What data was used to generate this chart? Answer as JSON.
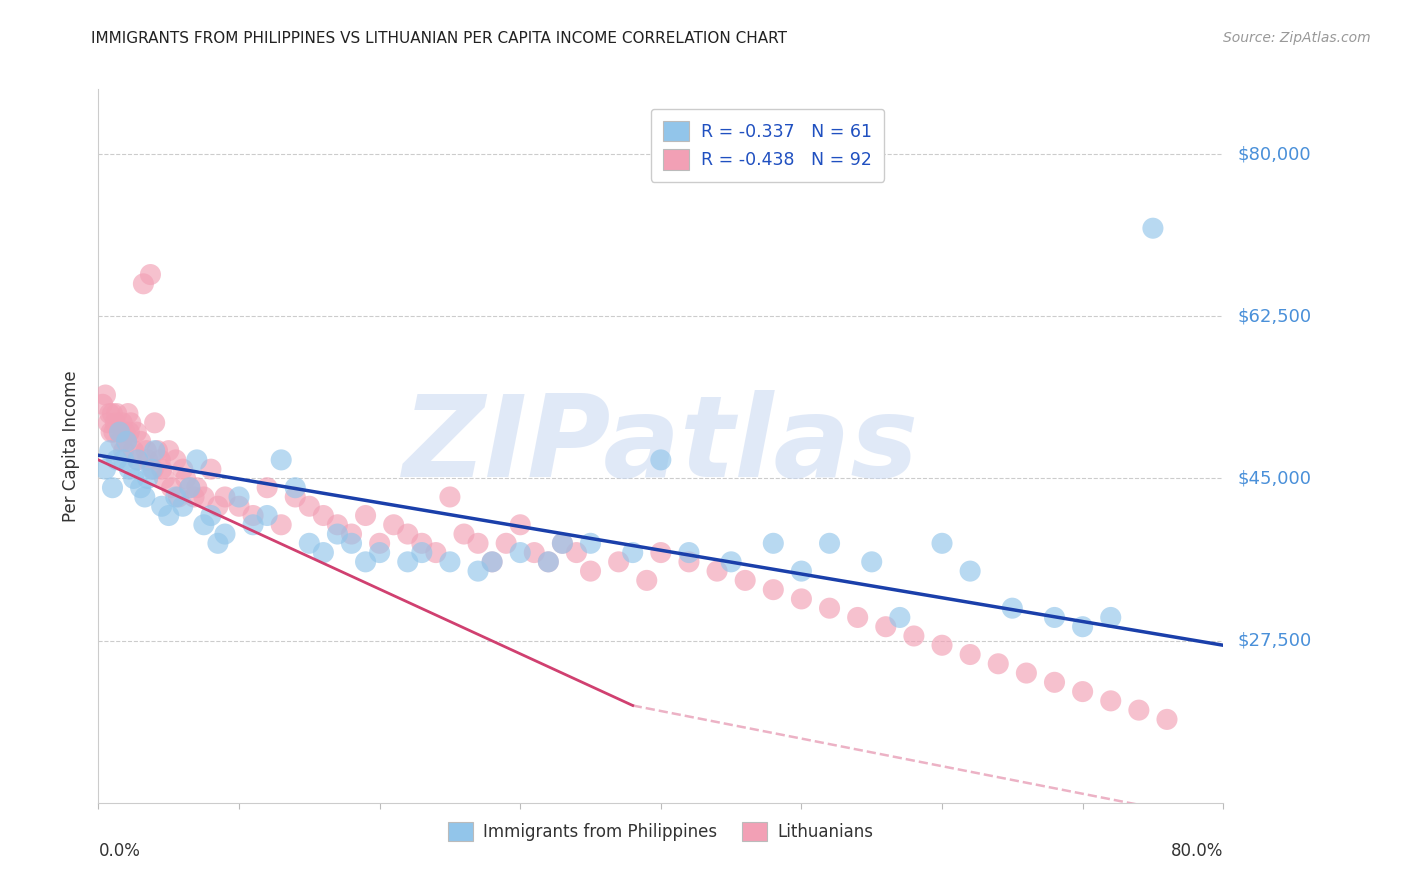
{
  "title": "IMMIGRANTS FROM PHILIPPINES VS LITHUANIAN PER CAPITA INCOME CORRELATION CHART",
  "source": "Source: ZipAtlas.com",
  "ylabel": "Per Capita Income",
  "ytick_labels": [
    "$80,000",
    "$62,500",
    "$45,000",
    "$27,500"
  ],
  "ytick_values": [
    80000,
    62500,
    45000,
    27500
  ],
  "xmin": 0.0,
  "xmax": 0.8,
  "ymin": 10000,
  "ymax": 87000,
  "legend_r1": "R = -0.337   N = 61",
  "legend_r2": "R = -0.438   N = 92",
  "blue_color": "#92C5EA",
  "pink_color": "#F2A0B5",
  "trend_blue": "#1A3FAA",
  "trend_pink": "#D04070",
  "watermark_text": "ZIPatlas",
  "watermark_color": "#C8D8F2",
  "blue_trend": [
    0.0,
    0.8,
    47500,
    27000
  ],
  "pink_trend_solid": [
    0.0,
    0.38,
    47000,
    20500
  ],
  "pink_trend_dash": [
    0.38,
    0.8,
    20500,
    8000
  ],
  "phil_x": [
    0.005,
    0.008,
    0.01,
    0.013,
    0.015,
    0.018,
    0.02,
    0.022,
    0.025,
    0.028,
    0.03,
    0.033,
    0.035,
    0.038,
    0.04,
    0.045,
    0.05,
    0.055,
    0.06,
    0.065,
    0.07,
    0.075,
    0.08,
    0.085,
    0.09,
    0.1,
    0.11,
    0.12,
    0.13,
    0.14,
    0.15,
    0.16,
    0.17,
    0.18,
    0.19,
    0.2,
    0.22,
    0.23,
    0.25,
    0.27,
    0.28,
    0.3,
    0.32,
    0.33,
    0.35,
    0.38,
    0.4,
    0.42,
    0.45,
    0.48,
    0.5,
    0.52,
    0.55,
    0.57,
    0.6,
    0.62,
    0.65,
    0.68,
    0.7,
    0.72,
    0.75
  ],
  "phil_y": [
    46000,
    48000,
    44000,
    47000,
    50000,
    47000,
    49000,
    46000,
    45000,
    47000,
    44000,
    43000,
    45000,
    46000,
    48000,
    42000,
    41000,
    43000,
    42000,
    44000,
    47000,
    40000,
    41000,
    38000,
    39000,
    43000,
    40000,
    41000,
    47000,
    44000,
    38000,
    37000,
    39000,
    38000,
    36000,
    37000,
    36000,
    37000,
    36000,
    35000,
    36000,
    37000,
    36000,
    38000,
    38000,
    37000,
    47000,
    37000,
    36000,
    38000,
    35000,
    38000,
    36000,
    30000,
    38000,
    35000,
    31000,
    30000,
    29000,
    30000,
    72000
  ],
  "lith_x": [
    0.003,
    0.005,
    0.007,
    0.008,
    0.009,
    0.01,
    0.011,
    0.012,
    0.013,
    0.015,
    0.016,
    0.017,
    0.018,
    0.019,
    0.02,
    0.021,
    0.022,
    0.023,
    0.025,
    0.027,
    0.028,
    0.03,
    0.032,
    0.034,
    0.035,
    0.037,
    0.039,
    0.04,
    0.042,
    0.044,
    0.045,
    0.047,
    0.05,
    0.052,
    0.055,
    0.057,
    0.06,
    0.062,
    0.065,
    0.068,
    0.07,
    0.075,
    0.08,
    0.085,
    0.09,
    0.1,
    0.11,
    0.12,
    0.13,
    0.14,
    0.15,
    0.16,
    0.17,
    0.18,
    0.19,
    0.2,
    0.21,
    0.22,
    0.23,
    0.24,
    0.25,
    0.26,
    0.27,
    0.28,
    0.29,
    0.3,
    0.31,
    0.32,
    0.33,
    0.34,
    0.35,
    0.37,
    0.39,
    0.4,
    0.42,
    0.44,
    0.46,
    0.48,
    0.5,
    0.52,
    0.54,
    0.56,
    0.58,
    0.6,
    0.62,
    0.64,
    0.66,
    0.68,
    0.7,
    0.72,
    0.74,
    0.76
  ],
  "lith_y": [
    53000,
    54000,
    51000,
    52000,
    50000,
    52000,
    50000,
    51000,
    52000,
    50000,
    49000,
    51000,
    48000,
    50000,
    49000,
    52000,
    50000,
    51000,
    48000,
    50000,
    47000,
    49000,
    66000,
    48000,
    47000,
    67000,
    46000,
    51000,
    48000,
    47000,
    46000,
    45000,
    48000,
    44000,
    47000,
    43000,
    46000,
    45000,
    44000,
    43000,
    44000,
    43000,
    46000,
    42000,
    43000,
    42000,
    41000,
    44000,
    40000,
    43000,
    42000,
    41000,
    40000,
    39000,
    41000,
    38000,
    40000,
    39000,
    38000,
    37000,
    43000,
    39000,
    38000,
    36000,
    38000,
    40000,
    37000,
    36000,
    38000,
    37000,
    35000,
    36000,
    34000,
    37000,
    36000,
    35000,
    34000,
    33000,
    32000,
    31000,
    30000,
    29000,
    28000,
    27000,
    26000,
    25000,
    24000,
    23000,
    22000,
    21000,
    20000,
    19000
  ]
}
